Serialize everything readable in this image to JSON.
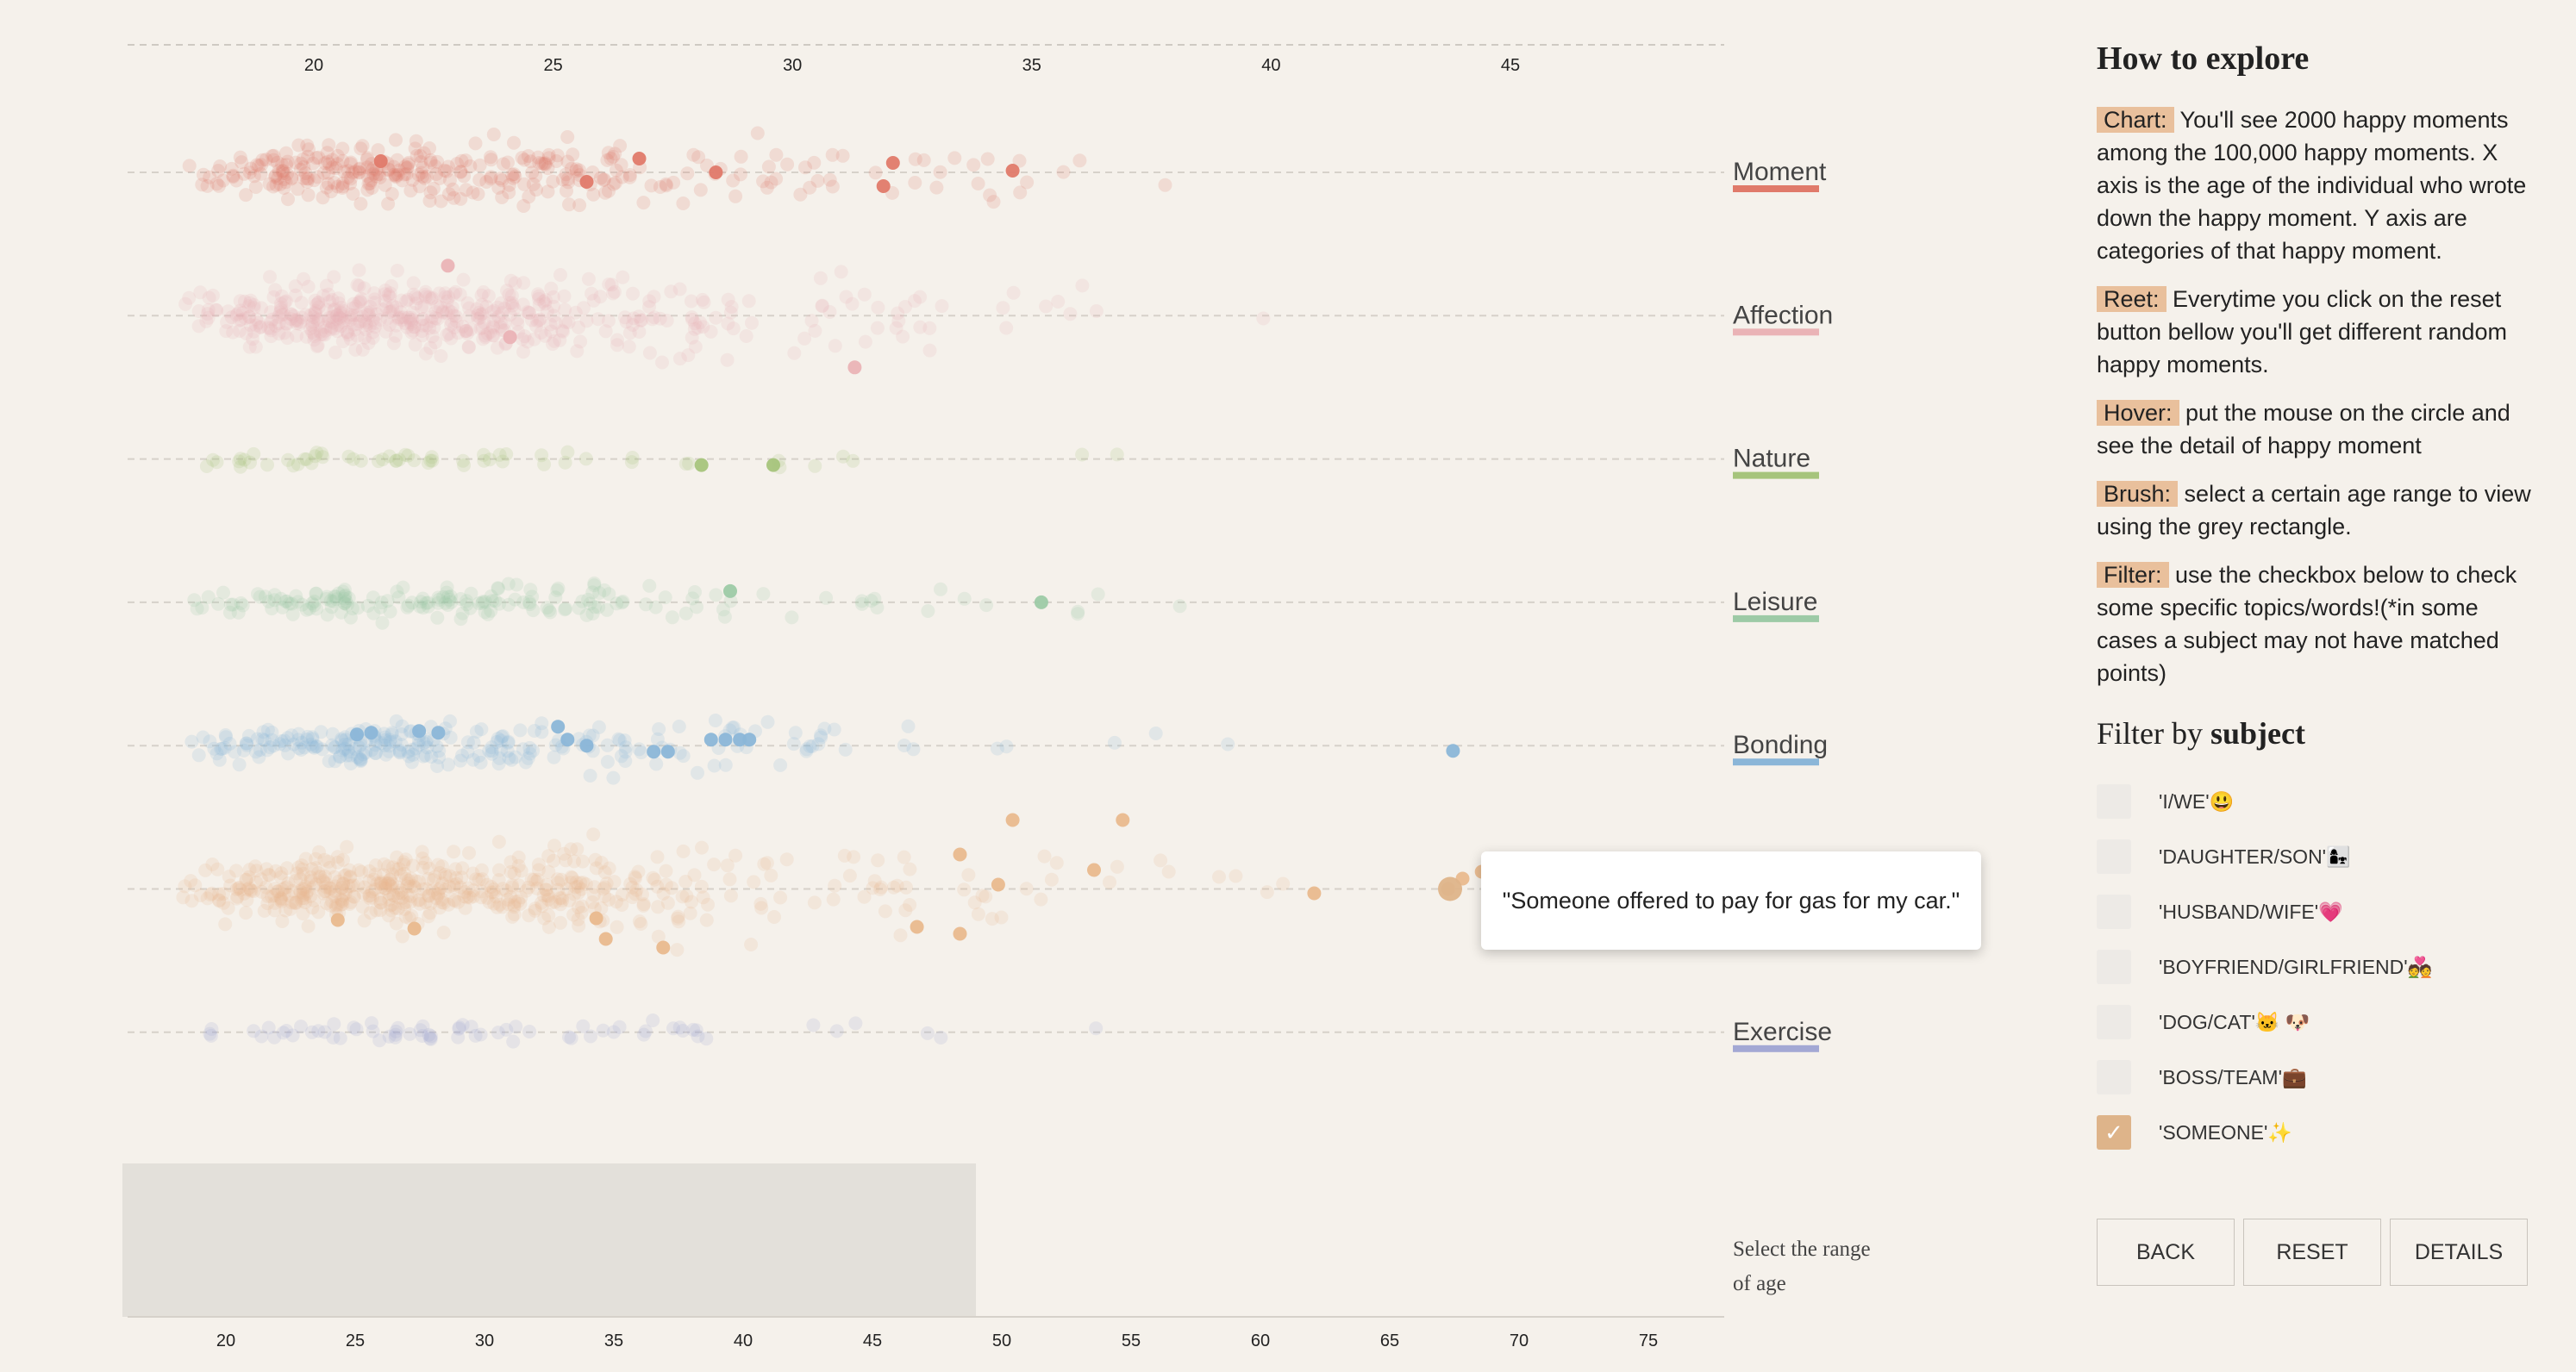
{
  "chart_data": {
    "type": "scatter",
    "subtype": "beeswarm",
    "top_axis": {
      "ticks": [
        20,
        25,
        30,
        35,
        40,
        45
      ]
    },
    "bottom_axis": {
      "ticks": [
        20,
        25,
        30,
        35,
        40,
        45,
        50,
        55,
        60,
        65,
        70,
        75
      ]
    },
    "brush_range": [
      16,
      49
    ],
    "categories": [
      {
        "name": "Moment",
        "color": "#e07a6a",
        "count": 340,
        "highlights": [
          [
            21.4,
            -13
          ],
          [
            26.8,
            -16
          ],
          [
            28.4,
            0
          ],
          [
            32.1,
            -11
          ],
          [
            25.7,
            11
          ],
          [
            31.9,
            16
          ],
          [
            34.6,
            -2
          ]
        ]
      },
      {
        "name": "Affection",
        "color": "#eab3b6",
        "count": 520,
        "highlights": [
          [
            22.8,
            -58
          ],
          [
            24.1,
            25
          ],
          [
            31.3,
            60
          ]
        ]
      },
      {
        "name": "Nature",
        "color": "#a6c47c",
        "count": 60,
        "highlights": [
          [
            28.1,
            7
          ],
          [
            29.6,
            7
          ]
        ]
      },
      {
        "name": "Leisure",
        "color": "#9dcaa6",
        "count": 180,
        "highlights": [
          [
            28.7,
            -13
          ],
          [
            35.2,
            0
          ]
        ]
      },
      {
        "name": "Bonding",
        "color": "#8bb6d8",
        "count": 260,
        "highlights": [
          [
            20.9,
            -13
          ],
          [
            21.2,
            -15
          ],
          [
            22.2,
            -17
          ],
          [
            22.6,
            -15
          ],
          [
            25.1,
            -22
          ],
          [
            25.3,
            -7
          ],
          [
            25.7,
            0
          ],
          [
            27.1,
            7
          ],
          [
            27.4,
            7
          ],
          [
            28.3,
            -7
          ],
          [
            28.6,
            -7
          ],
          [
            28.9,
            -7
          ],
          [
            29.1,
            -7
          ],
          [
            43.8,
            6
          ]
        ]
      },
      {
        "name": "",
        "color": "#e9b98e",
        "count": 560,
        "highlights": [
          [
            34.6,
            -80
          ],
          [
            36.9,
            -80
          ],
          [
            33.5,
            -40
          ],
          [
            36.3,
            -22
          ],
          [
            34.3,
            -5
          ],
          [
            40.9,
            5
          ],
          [
            20.5,
            36
          ],
          [
            22.1,
            46
          ],
          [
            25.9,
            34
          ],
          [
            26.1,
            58
          ],
          [
            32.6,
            44
          ],
          [
            33.5,
            52
          ],
          [
            27.3,
            68
          ],
          [
            43.7,
            0
          ],
          [
            44.0,
            -12
          ],
          [
            44.4,
            -20
          ]
        ]
      },
      {
        "name": "Exercise",
        "color": "#a3a8d4",
        "count": 70,
        "highlights": []
      }
    ],
    "tooltip": "\"Someone offered to pay for gas for my car.\""
  },
  "panel": {
    "title": "How to explore",
    "items": [
      {
        "tag": "Chart:",
        "text": "You'll see 2000 happy moments among the 100,000 happy moments. X axis is the age of the individual who wrote down the happy moment. Y axis are categories of that happy moment."
      },
      {
        "tag": "Reet:",
        "text": "Everytime you click on the reset button bellow you'll get different random happy moments."
      },
      {
        "tag": "Hover:",
        "text": "put the mouse on the circle and see the detail of happy moment"
      },
      {
        "tag": "Brush:",
        "text": "select a certain age range to view using the grey rectangle."
      },
      {
        "tag": "Filter:",
        "text": "use the checkbox below to check some specific topics/words!(*in some cases a subject may not have matched points)"
      }
    ],
    "filter_title_prefix": "Filter by",
    "filter_title_bold": "subject",
    "filters": [
      {
        "label": "'I/WE'😃",
        "checked": false
      },
      {
        "label": "'DAUGHTER/SON'👩‍👧",
        "checked": false
      },
      {
        "label": "'HUSBAND/WIFE'💗",
        "checked": false
      },
      {
        "label": "'BOYFRIEND/GIRLFRIEND'💑",
        "checked": false
      },
      {
        "label": "'DOG/CAT'🐱 🐶",
        "checked": false
      },
      {
        "label": "'BOSS/TEAM'💼",
        "checked": false
      },
      {
        "label": "'SOMEONE'✨",
        "checked": true
      }
    ]
  },
  "range_note": {
    "line1": "Select the range",
    "line2": "of age"
  },
  "buttons": {
    "back": "BACK",
    "reset": "RESET",
    "details": "DETAILS"
  }
}
